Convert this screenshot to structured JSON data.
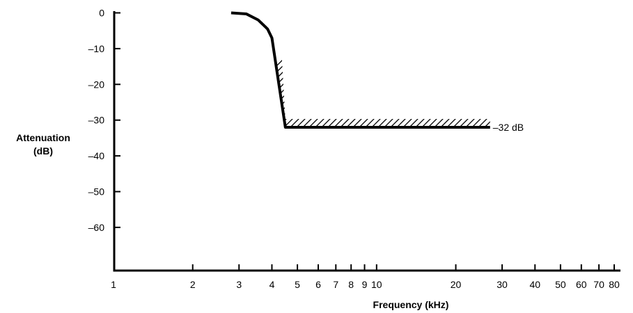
{
  "chart_data": {
    "type": "line",
    "title": "",
    "xlabel": "Frequency (kHz)",
    "ylabel": [
      "Attenuation",
      "(dB)"
    ],
    "x_scale": "log",
    "xlim": [
      1,
      80
    ],
    "ylim": [
      -70,
      0
    ],
    "x_ticks": [
      1,
      2,
      3,
      4,
      5,
      6,
      7,
      8,
      9,
      10,
      20,
      30,
      40,
      50,
      60,
      70,
      80
    ],
    "y_ticks": [
      0,
      -10,
      -20,
      -30,
      -40,
      -50,
      -60
    ],
    "grid": false,
    "legend": "none",
    "series": [
      {
        "x": [
          2.8,
          3.2,
          3.55,
          3.85,
          4.0,
          4.5,
          27
        ],
        "y": [
          0,
          -0.3,
          -2,
          -4.5,
          -7,
          -32,
          -32
        ]
      }
    ],
    "limit_mask": {
      "x": [
        2.8,
        3.2,
        3.55,
        3.85,
        4.0,
        4.5,
        27
      ],
      "y": [
        0,
        -0.3,
        -2,
        -4.5,
        -7,
        -32,
        -32
      ]
    },
    "annotations": [
      {
        "text": "–32 dB",
        "x": 27,
        "y": -32
      }
    ]
  }
}
